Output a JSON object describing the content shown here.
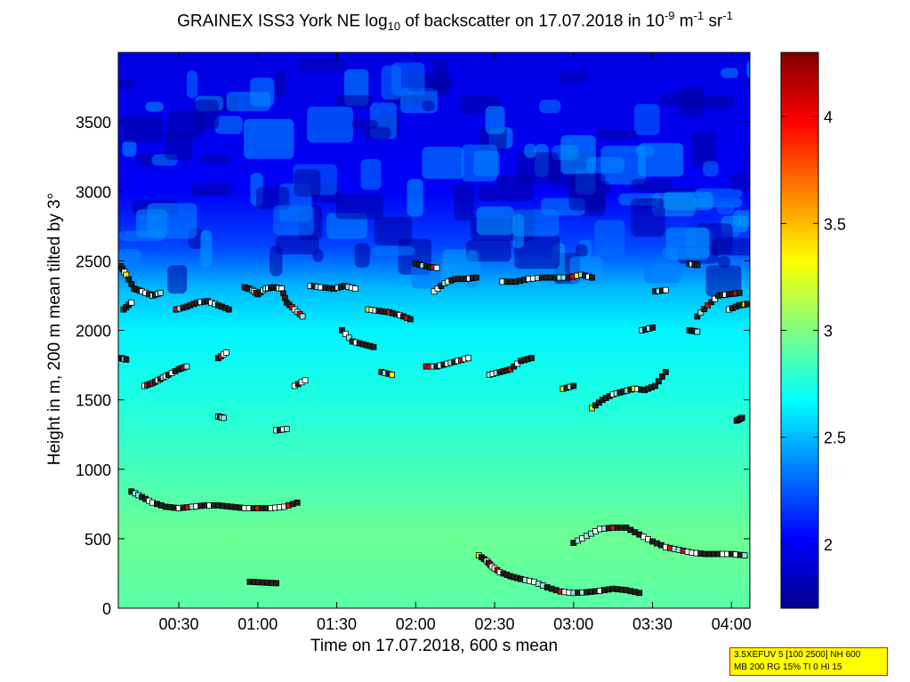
{
  "title": {
    "prefix": "GRAINEX ISS3 York NE log",
    "sub": "10",
    "middle": " of backscatter on 17.07.2018 in 10",
    "sup1": "-9",
    "m_unit": " m",
    "sup2": "-1",
    "sr_unit": " sr",
    "sup3": "-1"
  },
  "ylabel": "Height in m, 200 m mean tilted by 3°",
  "xlabel": "Time on 17.07.2018, 600 s mean",
  "info": {
    "line1": "3.5XEFUV 5 [100 2500] NH 600",
    "line2": "MB 200 RG 15% TI 0 HI 15"
  },
  "colors": {
    "low": "#00008f",
    "mid": "#00ffff",
    "high": "#800000",
    "marker_edge": "#000000"
  },
  "chart_data": {
    "type": "heatmap",
    "x_unit": "time (hh:mm)",
    "xlim": [
      "00:07",
      "04:07"
    ],
    "ylim": [
      0,
      4000
    ],
    "xticks": [
      "00:30",
      "01:00",
      "01:30",
      "02:00",
      "02:30",
      "03:00",
      "03:30",
      "04:00"
    ],
    "yticks": [
      0,
      500,
      1000,
      1500,
      2000,
      2500,
      3000,
      3500
    ],
    "colorbar": {
      "colormap": "jet",
      "range": [
        1.7,
        4.3
      ],
      "ticks": [
        2,
        2.5,
        3,
        3.5,
        4
      ]
    },
    "field_profile": [
      {
        "height": 0,
        "value": 2.9
      },
      {
        "height": 500,
        "value": 2.95
      },
      {
        "height": 1000,
        "value": 2.85
      },
      {
        "height": 1500,
        "value": 2.75
      },
      {
        "height": 2000,
        "value": 2.65
      },
      {
        "height": 2300,
        "value": 2.5
      },
      {
        "height": 2600,
        "value": 2.2
      },
      {
        "height": 3000,
        "value": 2.0
      },
      {
        "height": 4000,
        "value": 1.95
      }
    ],
    "layer_series": [
      {
        "points": [
          [
            "00:12",
            840
          ],
          [
            "00:16",
            800
          ],
          [
            "00:20",
            760
          ],
          [
            "00:25",
            730
          ],
          [
            "00:30",
            720
          ],
          [
            "00:35",
            730
          ],
          [
            "00:40",
            740
          ],
          [
            "00:45",
            740
          ],
          [
            "00:50",
            730
          ],
          [
            "00:55",
            720
          ],
          [
            "01:00",
            720
          ],
          [
            "01:05",
            720
          ],
          [
            "01:10",
            730
          ],
          [
            "01:15",
            760
          ]
        ]
      },
      {
        "points": [
          [
            "00:57",
            190
          ],
          [
            "01:02",
            185
          ],
          [
            "01:07",
            180
          ]
        ]
      },
      {
        "points": [
          [
            "02:24",
            380
          ],
          [
            "02:27",
            340
          ],
          [
            "02:29",
            300
          ],
          [
            "02:32",
            260
          ],
          [
            "02:36",
            230
          ],
          [
            "02:40",
            210
          ],
          [
            "02:45",
            190
          ],
          [
            "02:50",
            150
          ],
          [
            "02:55",
            120
          ],
          [
            "03:00",
            110
          ],
          [
            "03:05",
            115
          ],
          [
            "03:10",
            125
          ],
          [
            "03:15",
            140
          ],
          [
            "03:20",
            130
          ],
          [
            "03:25",
            110
          ]
        ]
      },
      {
        "points": [
          [
            "03:00",
            470
          ],
          [
            "03:05",
            520
          ],
          [
            "03:10",
            570
          ],
          [
            "03:15",
            580
          ],
          [
            "03:20",
            580
          ],
          [
            "03:25",
            530
          ],
          [
            "03:30",
            480
          ],
          [
            "03:35",
            440
          ],
          [
            "03:40",
            420
          ],
          [
            "03:45",
            400
          ],
          [
            "03:50",
            390
          ],
          [
            "03:55",
            390
          ],
          [
            "04:00",
            390
          ],
          [
            "04:05",
            380
          ]
        ]
      },
      {
        "points": [
          [
            "00:08",
            2460
          ],
          [
            "00:10",
            2400
          ],
          [
            "00:13",
            2300
          ],
          [
            "00:16",
            2280
          ],
          [
            "00:20",
            2250
          ],
          [
            "00:23",
            2270
          ]
        ]
      },
      {
        "points": [
          [
            "00:09",
            2150
          ],
          [
            "00:12",
            2200
          ]
        ]
      },
      {
        "points": [
          [
            "00:08",
            1800
          ],
          [
            "00:10",
            1790
          ]
        ]
      },
      {
        "points": [
          [
            "00:17",
            1600
          ],
          [
            "00:20",
            1620
          ],
          [
            "00:23",
            1650
          ],
          [
            "00:26",
            1680
          ],
          [
            "00:30",
            1720
          ],
          [
            "00:33",
            1740
          ]
        ]
      },
      {
        "points": [
          [
            "00:29",
            2150
          ],
          [
            "00:33",
            2170
          ],
          [
            "00:37",
            2200
          ],
          [
            "00:41",
            2210
          ],
          [
            "00:45",
            2180
          ],
          [
            "00:49",
            2150
          ]
        ]
      },
      {
        "points": [
          [
            "00:45",
            1800
          ],
          [
            "00:48",
            1840
          ]
        ]
      },
      {
        "points": [
          [
            "00:45",
            1380
          ],
          [
            "00:47",
            1370
          ]
        ]
      },
      {
        "points": [
          [
            "00:55",
            2310
          ],
          [
            "00:58",
            2290
          ],
          [
            "01:00",
            2260
          ],
          [
            "01:03",
            2300
          ],
          [
            "01:06",
            2310
          ],
          [
            "01:09",
            2300
          ],
          [
            "01:11",
            2200
          ],
          [
            "01:14",
            2150
          ],
          [
            "01:17",
            2100
          ]
        ]
      },
      {
        "points": [
          [
            "01:07",
            1280
          ],
          [
            "01:11",
            1290
          ]
        ]
      },
      {
        "points": [
          [
            "01:14",
            1600
          ],
          [
            "01:18",
            1640
          ]
        ]
      },
      {
        "points": [
          [
            "01:20",
            2320
          ],
          [
            "01:24",
            2310
          ],
          [
            "01:29",
            2300
          ],
          [
            "01:33",
            2320
          ],
          [
            "01:37",
            2300
          ]
        ]
      },
      {
        "points": [
          [
            "01:32",
            2000
          ],
          [
            "01:36",
            1920
          ],
          [
            "01:40",
            1900
          ],
          [
            "01:44",
            1880
          ]
        ]
      },
      {
        "points": [
          [
            "01:42",
            2150
          ],
          [
            "01:46",
            2140
          ],
          [
            "01:50",
            2130
          ],
          [
            "01:54",
            2110
          ],
          [
            "01:58",
            2080
          ]
        ]
      },
      {
        "points": [
          [
            "01:47",
            1700
          ],
          [
            "01:51",
            1680
          ]
        ]
      },
      {
        "points": [
          [
            "02:00",
            2480
          ],
          [
            "02:04",
            2460
          ],
          [
            "02:08",
            2450
          ]
        ]
      },
      {
        "points": [
          [
            "02:07",
            2280
          ],
          [
            "02:11",
            2340
          ],
          [
            "02:15",
            2370
          ],
          [
            "02:19",
            2370
          ],
          [
            "02:23",
            2380
          ]
        ]
      },
      {
        "points": [
          [
            "02:04",
            1740
          ],
          [
            "02:08",
            1740
          ],
          [
            "02:12",
            1760
          ],
          [
            "02:16",
            1780
          ],
          [
            "02:20",
            1800
          ]
        ]
      },
      {
        "points": [
          [
            "02:28",
            1680
          ],
          [
            "02:32",
            1700
          ],
          [
            "02:36",
            1720
          ],
          [
            "02:40",
            1780
          ],
          [
            "02:44",
            1800
          ]
        ]
      },
      {
        "points": [
          [
            "02:33",
            2350
          ],
          [
            "02:38",
            2350
          ],
          [
            "02:43",
            2370
          ],
          [
            "02:48",
            2380
          ],
          [
            "02:53",
            2380
          ],
          [
            "02:58",
            2380
          ],
          [
            "03:03",
            2400
          ],
          [
            "03:07",
            2380
          ]
        ]
      },
      {
        "points": [
          [
            "02:56",
            1580
          ],
          [
            "03:00",
            1600
          ]
        ]
      },
      {
        "points": [
          [
            "03:07",
            1440
          ],
          [
            "03:11",
            1500
          ],
          [
            "03:15",
            1540
          ],
          [
            "03:19",
            1560
          ],
          [
            "03:23",
            1580
          ],
          [
            "03:27",
            1570
          ],
          [
            "03:31",
            1600
          ],
          [
            "03:35",
            1700
          ]
        ]
      },
      {
        "points": [
          [
            "03:26",
            2000
          ],
          [
            "03:30",
            2020
          ]
        ]
      },
      {
        "points": [
          [
            "03:31",
            2280
          ],
          [
            "03:35",
            2290
          ]
        ]
      },
      {
        "points": [
          [
            "03:44",
            2480
          ],
          [
            "03:47",
            2470
          ]
        ]
      },
      {
        "points": [
          [
            "03:44",
            2000
          ],
          [
            "03:47",
            1990
          ]
        ]
      },
      {
        "points": [
          [
            "03:47",
            2100
          ],
          [
            "03:51",
            2180
          ],
          [
            "03:55",
            2250
          ],
          [
            "03:59",
            2260
          ],
          [
            "04:03",
            2270
          ]
        ]
      },
      {
        "points": [
          [
            "03:59",
            2150
          ],
          [
            "04:03",
            2180
          ],
          [
            "04:06",
            2190
          ]
        ]
      },
      {
        "points": [
          [
            "04:02",
            1350
          ],
          [
            "04:04",
            1370
          ]
        ]
      }
    ]
  }
}
